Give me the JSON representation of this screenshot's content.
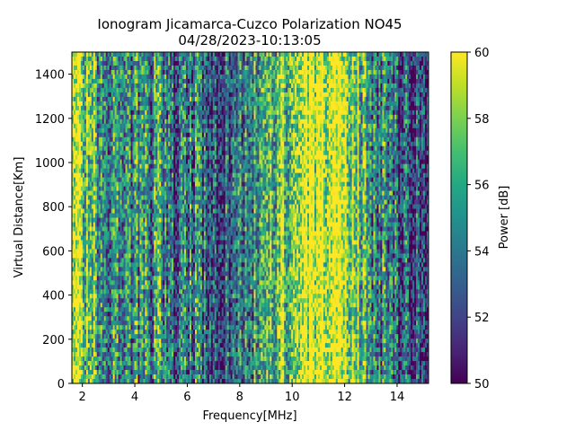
{
  "chart_data": {
    "type": "heatmap",
    "title": "Ionogram Jicamarca-Cuzco Polarization NO45",
    "subtitle": "04/28/2023-10:13:05",
    "xlabel": "Frequency[MHz]",
    "ylabel": "Virtual Distance[Km]",
    "xlim": [
      1.6,
      15.2
    ],
    "ylim": [
      0,
      1500
    ],
    "x_ticks": [
      2,
      4,
      6,
      8,
      10,
      12,
      14
    ],
    "y_ticks": [
      0,
      200,
      400,
      600,
      800,
      1000,
      1200,
      1400
    ],
    "colorbar": {
      "label": "Power [dB]",
      "range": [
        50,
        60
      ],
      "ticks": [
        50,
        52,
        54,
        56,
        58,
        60
      ],
      "colormap": "viridis"
    },
    "column_profile": {
      "description_freq_MHz": [
        1.6,
        2.2,
        2.6,
        3.0,
        3.4,
        3.8,
        4.2,
        4.6,
        5.0,
        5.4,
        5.8,
        6.2,
        6.6,
        7.0,
        7.4,
        7.8,
        8.2,
        8.6,
        9.0,
        9.3,
        9.6,
        10.0,
        10.4,
        10.8,
        11.2,
        11.6,
        12.0,
        12.4,
        12.8,
        13.2,
        13.6,
        14.0,
        14.4,
        14.8,
        15.2
      ],
      "mean_power_dB": [
        58.5,
        57.5,
        56.0,
        55.0,
        54.5,
        54.0,
        55.0,
        54.0,
        55.5,
        53.5,
        53.0,
        55.0,
        53.0,
        52.0,
        52.5,
        53.0,
        54.5,
        55.0,
        57.5,
        56.0,
        58.0,
        57.0,
        60.0,
        60.0,
        60.0,
        60.0,
        59.5,
        58.0,
        56.0,
        55.0,
        54.0,
        53.0,
        52.5,
        52.0,
        52.0
      ]
    }
  }
}
